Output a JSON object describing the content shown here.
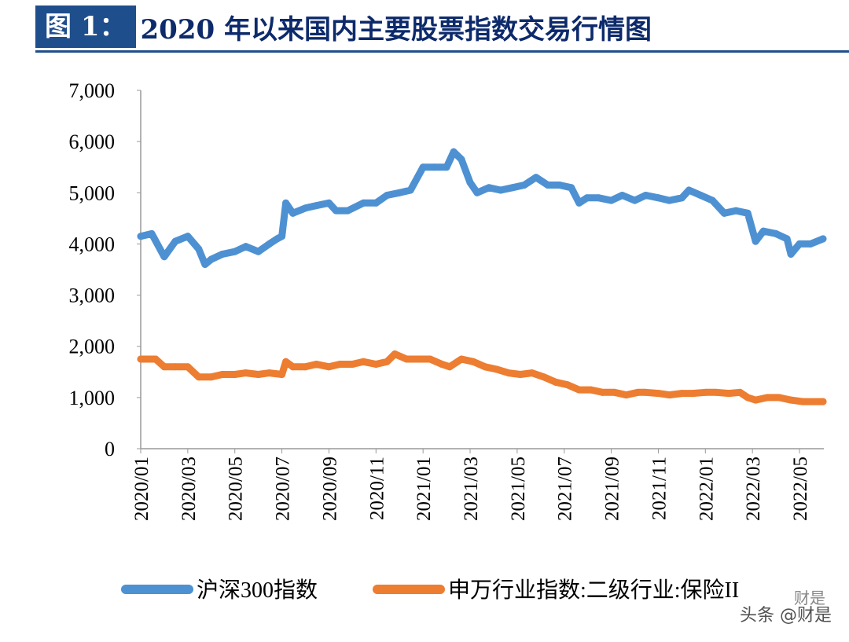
{
  "header": {
    "figure_label": "图 1：",
    "title": "2020 年以来国内主要股票指数交易行情图"
  },
  "watermark": {
    "text": "头条 @财是",
    "small": "财是"
  },
  "chart_data": {
    "type": "line",
    "title": "2020 年以来国内主要股票指数交易行情图",
    "xlabel": "",
    "ylabel": "",
    "ylim": [
      0,
      7000
    ],
    "yticks": [
      "0",
      "1,000",
      "2,000",
      "3,000",
      "4,000",
      "5,000",
      "6,000",
      "7,000"
    ],
    "xticks": [
      "2020/01",
      "2020/03",
      "2020/05",
      "2020/07",
      "2020/09",
      "2020/11",
      "2021/01",
      "2021/03",
      "2021/05",
      "2021/07",
      "2021/09",
      "2021/11",
      "2022/01",
      "2022/03",
      "2022/05"
    ],
    "grid": false,
    "legend": "bottom",
    "series": [
      {
        "name": "沪深300指数",
        "color": "#4e91d2",
        "points": [
          [
            "2020-01-01",
            4150
          ],
          [
            "2020-01-15",
            4200
          ],
          [
            "2020-02-01",
            3750
          ],
          [
            "2020-02-15",
            4050
          ],
          [
            "2020-03-01",
            4150
          ],
          [
            "2020-03-15",
            3900
          ],
          [
            "2020-03-23",
            3600
          ],
          [
            "2020-04-01",
            3700
          ],
          [
            "2020-04-15",
            3800
          ],
          [
            "2020-05-01",
            3850
          ],
          [
            "2020-05-15",
            3950
          ],
          [
            "2020-06-01",
            3850
          ],
          [
            "2020-06-15",
            4000
          ],
          [
            "2020-06-25",
            4100
          ],
          [
            "2020-07-01",
            4150
          ],
          [
            "2020-07-06",
            4800
          ],
          [
            "2020-07-15",
            4600
          ],
          [
            "2020-08-01",
            4700
          ],
          [
            "2020-08-15",
            4750
          ],
          [
            "2020-09-01",
            4800
          ],
          [
            "2020-09-10",
            4650
          ],
          [
            "2020-09-25",
            4650
          ],
          [
            "2020-10-15",
            4800
          ],
          [
            "2020-11-01",
            4800
          ],
          [
            "2020-11-15",
            4950
          ],
          [
            "2020-12-01",
            5000
          ],
          [
            "2020-12-15",
            5050
          ],
          [
            "2021-01-01",
            5500
          ],
          [
            "2021-01-15",
            5500
          ],
          [
            "2021-02-01",
            5500
          ],
          [
            "2021-02-10",
            5800
          ],
          [
            "2021-02-20",
            5650
          ],
          [
            "2021-03-01",
            5200
          ],
          [
            "2021-03-10",
            5000
          ],
          [
            "2021-03-25",
            5100
          ],
          [
            "2021-04-10",
            5050
          ],
          [
            "2021-04-25",
            5100
          ],
          [
            "2021-05-10",
            5150
          ],
          [
            "2021-05-25",
            5300
          ],
          [
            "2021-06-10",
            5150
          ],
          [
            "2021-06-25",
            5150
          ],
          [
            "2021-07-10",
            5100
          ],
          [
            "2021-07-20",
            4800
          ],
          [
            "2021-07-30",
            4900
          ],
          [
            "2021-08-15",
            4900
          ],
          [
            "2021-09-01",
            4850
          ],
          [
            "2021-09-15",
            4950
          ],
          [
            "2021-10-01",
            4850
          ],
          [
            "2021-10-15",
            4950
          ],
          [
            "2021-11-01",
            4900
          ],
          [
            "2021-11-15",
            4850
          ],
          [
            "2021-12-01",
            4900
          ],
          [
            "2021-12-10",
            5050
          ],
          [
            "2021-12-25",
            4950
          ],
          [
            "2022-01-10",
            4850
          ],
          [
            "2022-01-25",
            4600
          ],
          [
            "2022-02-10",
            4650
          ],
          [
            "2022-02-25",
            4600
          ],
          [
            "2022-03-05",
            4050
          ],
          [
            "2022-03-15",
            4250
          ],
          [
            "2022-04-01",
            4200
          ],
          [
            "2022-04-15",
            4100
          ],
          [
            "2022-04-20",
            3800
          ],
          [
            "2022-05-01",
            4000
          ],
          [
            "2022-05-15",
            4000
          ],
          [
            "2022-05-31",
            4100
          ]
        ]
      },
      {
        "name": "申万行业指数:二级行业:保险II",
        "color": "#ed7d31",
        "points": [
          [
            "2020-01-01",
            1750
          ],
          [
            "2020-01-20",
            1750
          ],
          [
            "2020-02-01",
            1600
          ],
          [
            "2020-02-15",
            1600
          ],
          [
            "2020-03-01",
            1600
          ],
          [
            "2020-03-15",
            1400
          ],
          [
            "2020-04-01",
            1400
          ],
          [
            "2020-04-15",
            1450
          ],
          [
            "2020-05-01",
            1450
          ],
          [
            "2020-05-15",
            1480
          ],
          [
            "2020-06-01",
            1450
          ],
          [
            "2020-06-15",
            1480
          ],
          [
            "2020-07-01",
            1450
          ],
          [
            "2020-07-06",
            1700
          ],
          [
            "2020-07-15",
            1600
          ],
          [
            "2020-08-01",
            1600
          ],
          [
            "2020-08-15",
            1650
          ],
          [
            "2020-09-01",
            1600
          ],
          [
            "2020-09-15",
            1650
          ],
          [
            "2020-10-01",
            1650
          ],
          [
            "2020-10-15",
            1700
          ],
          [
            "2020-11-01",
            1650
          ],
          [
            "2020-11-15",
            1700
          ],
          [
            "2020-11-25",
            1850
          ],
          [
            "2020-12-10",
            1750
          ],
          [
            "2020-12-25",
            1750
          ],
          [
            "2021-01-10",
            1750
          ],
          [
            "2021-01-25",
            1650
          ],
          [
            "2021-02-05",
            1600
          ],
          [
            "2021-02-20",
            1750
          ],
          [
            "2021-03-05",
            1700
          ],
          [
            "2021-03-20",
            1600
          ],
          [
            "2021-04-05",
            1550
          ],
          [
            "2021-04-20",
            1480
          ],
          [
            "2021-05-05",
            1450
          ],
          [
            "2021-05-20",
            1480
          ],
          [
            "2021-06-05",
            1400
          ],
          [
            "2021-06-20",
            1300
          ],
          [
            "2021-07-05",
            1250
          ],
          [
            "2021-07-20",
            1150
          ],
          [
            "2021-08-05",
            1150
          ],
          [
            "2021-08-20",
            1100
          ],
          [
            "2021-09-05",
            1100
          ],
          [
            "2021-09-20",
            1050
          ],
          [
            "2021-10-05",
            1100
          ],
          [
            "2021-10-15",
            1100
          ],
          [
            "2021-11-01",
            1080
          ],
          [
            "2021-11-15",
            1050
          ],
          [
            "2021-12-01",
            1080
          ],
          [
            "2021-12-15",
            1080
          ],
          [
            "2022-01-01",
            1100
          ],
          [
            "2022-01-15",
            1100
          ],
          [
            "2022-02-01",
            1080
          ],
          [
            "2022-02-15",
            1100
          ],
          [
            "2022-02-25",
            1000
          ],
          [
            "2022-03-05",
            950
          ],
          [
            "2022-03-20",
            1000
          ],
          [
            "2022-04-05",
            1000
          ],
          [
            "2022-04-20",
            950
          ],
          [
            "2022-05-05",
            920
          ],
          [
            "2022-05-31",
            920
          ]
        ]
      }
    ]
  }
}
